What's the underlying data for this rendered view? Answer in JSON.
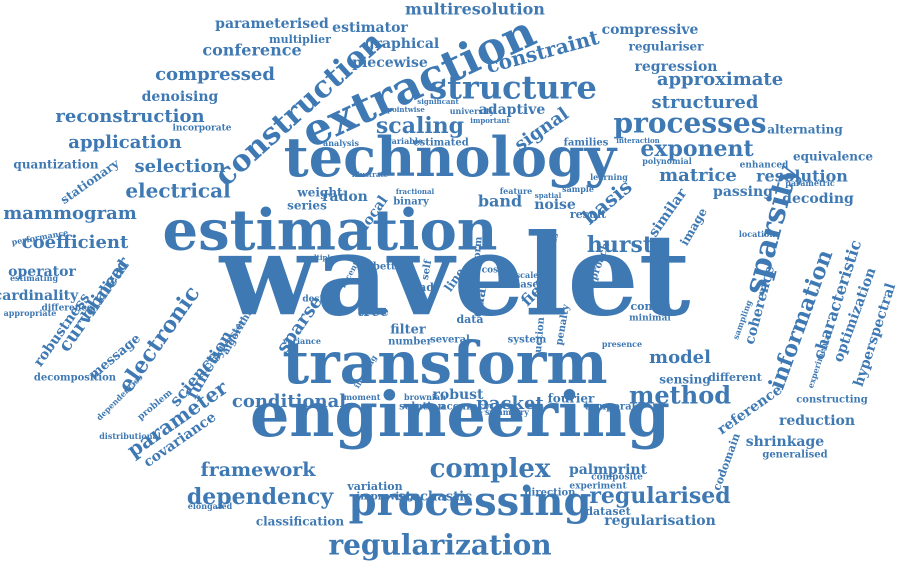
{
  "colors": {
    "word": "#3f79b3",
    "background": "#ffffff"
  },
  "words": [
    "wavelet",
    "engineering",
    "transform",
    "estimation",
    "technology",
    "extraction",
    "processing",
    "construction",
    "structure",
    "regularization",
    "processes",
    "complex",
    "sparsity",
    "information",
    "method",
    "dependency",
    "regularised",
    "framework",
    "reconstruction",
    "application",
    "scaling",
    "approximate",
    "compressed",
    "structured",
    "mammogram",
    "exponent",
    "electrical",
    "coefficient",
    "selection",
    "constraint",
    "electronic",
    "curvilinear",
    "characteristic",
    "conditional",
    "parameter",
    "science",
    "signal",
    "hurst",
    "matrice",
    "resolution",
    "basis",
    "multiresolution",
    "conference",
    "estimator",
    "parameterised",
    "graphical",
    "piecewise",
    "compressive",
    "regression",
    "denoising",
    "regulariser",
    "adaptive",
    "model",
    "palmprint",
    "regularisation",
    "reduction",
    "decoding",
    "optimization",
    "hyperspectral",
    "reference",
    "covariance",
    "robustness",
    "function",
    "operator",
    "cardinality",
    "localized",
    "quantization",
    "stationary",
    "sparse",
    "packet",
    "band",
    "noise",
    "similar",
    "local",
    "fourier",
    "radon",
    "series",
    "weight",
    "passing",
    "coherence",
    "shrinkage",
    "equivalence",
    "alternating",
    "classification",
    "stochastic",
    "tree",
    "filter",
    "field",
    "dual",
    "line",
    "data",
    "robust",
    "sensing",
    "different",
    "generalised",
    "constructing",
    "codomain",
    "experimental",
    "sampling",
    "dataset",
    "multiplier",
    "message",
    "sylvester",
    "decomposition",
    "dependencies",
    "problem",
    "difference",
    "estimating",
    "performance",
    "appropriate",
    "distributional",
    "elongated",
    "variation",
    "improving",
    "direction",
    "composite",
    "experiment",
    "accuracy",
    "symmetry",
    "temporal",
    "solution",
    "brownian",
    "variance",
    "number",
    "several",
    "system",
    "penalty",
    "approach",
    "image",
    "result",
    "constr",
    "minimal",
    "base",
    "scale",
    "cost",
    "road",
    "binary",
    "algorithm",
    "design",
    "enhanced",
    "parametric",
    "location",
    "learning",
    "polynomial",
    "interaction",
    "families",
    "estimated",
    "important",
    "university",
    "significant",
    "variable",
    "analysis",
    "illustrate",
    "incorporate",
    "pointwise",
    "fractional",
    "feature",
    "spatial",
    "sample",
    "multiple",
    "recent",
    "better",
    "presence",
    "moment",
    "imaging",
    "uction",
    "form",
    "self",
    "process"
  ]
}
